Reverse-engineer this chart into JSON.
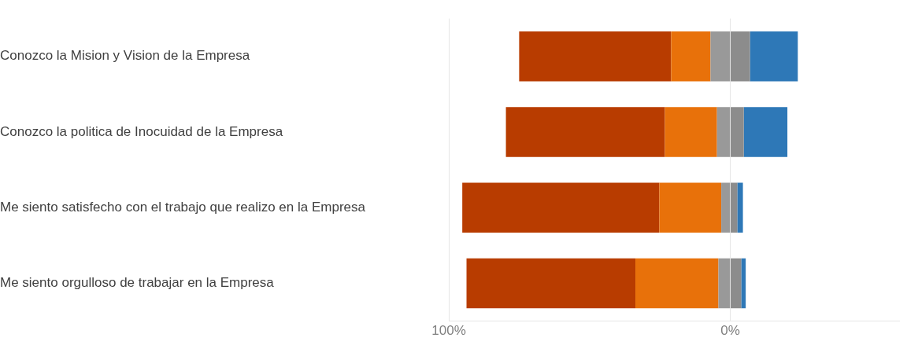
{
  "chart_data": {
    "type": "bar",
    "orientation": "horizontal",
    "stacked": true,
    "categories": [
      "Conozco la Mision y Vision de la Empresa",
      "Conozco la politica de Inocuidad de la Empresa",
      "Me siento satisfecho con el trabajo que realizo en la Empresa",
      "Me siento orgulloso de trabajar en la Empresa"
    ],
    "series": [
      {
        "color": "#999999",
        "values": [
          -7,
          -4.7,
          -3.2,
          -4.2
        ]
      },
      {
        "color": "#e8710a",
        "values": [
          -14,
          -18.5,
          -22,
          -29.5
        ]
      },
      {
        "color": "#b83c00",
        "values": [
          -54,
          -56.5,
          -70,
          -60
        ]
      },
      {
        "color": "#8c8c8c",
        "values": [
          7,
          4.8,
          2.5,
          3.9
        ]
      },
      {
        "color": "#2e78b7",
        "values": [
          17,
          15.5,
          2,
          1.6
        ]
      }
    ],
    "xlim": [
      -100,
      60
    ],
    "xticks": [
      {
        "value": -100,
        "label": "100%"
      },
      {
        "value": 0,
        "label": "0%"
      }
    ],
    "grid": "x",
    "legend": false
  }
}
